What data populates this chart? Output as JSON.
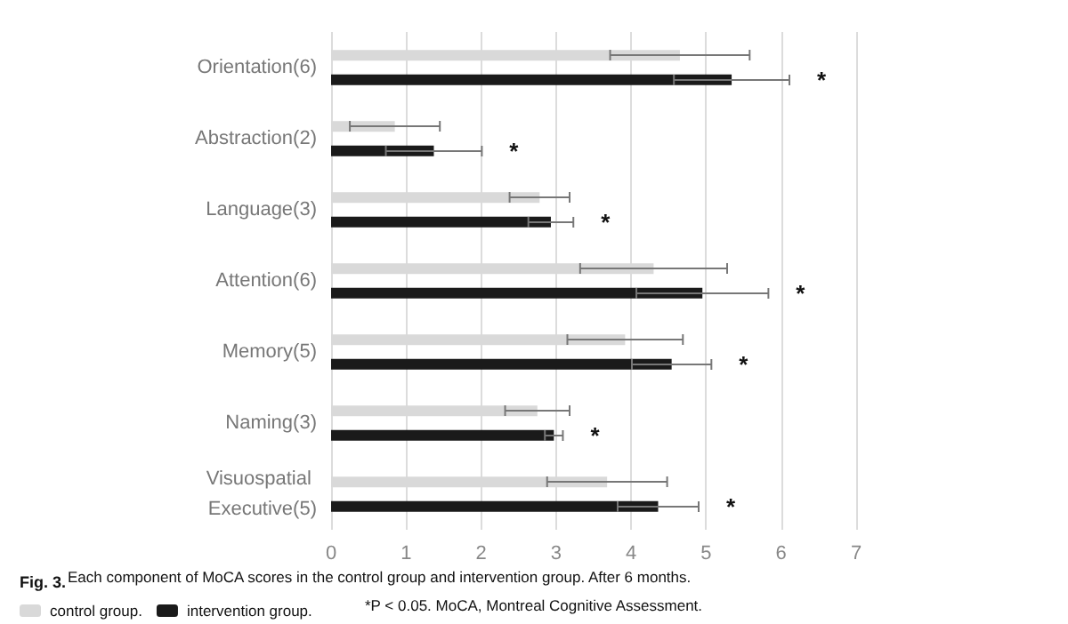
{
  "chart_data": {
    "type": "bar",
    "orientation": "horizontal",
    "title": "Fig. 3.",
    "categories": [
      "Orientation(6)",
      "Abstraction(2)",
      "Language(3)",
      "Attention(6)",
      "Memory(5)",
      "Naming(3)",
      "Visuospatial Executive(5)"
    ],
    "series": [
      {
        "name": "control group.",
        "color": "#d9d9d9",
        "values": [
          4.65,
          0.85,
          2.78,
          4.3,
          3.92,
          2.75,
          3.68
        ],
        "errors": [
          0.93,
          0.6,
          0.4,
          0.98,
          0.77,
          0.43,
          0.8
        ]
      },
      {
        "name": "intervention group.",
        "color": "#1a1a1a",
        "values": [
          5.34,
          1.37,
          2.93,
          4.95,
          4.54,
          2.97,
          4.36
        ],
        "errors": [
          0.77,
          0.64,
          0.3,
          0.88,
          0.53,
          0.12,
          0.54
        ]
      }
    ],
    "xlim": [
      0,
      7
    ],
    "xticks": [
      0,
      1,
      2,
      3,
      4,
      5,
      6,
      7
    ],
    "grid": "x",
    "legend": "bottom",
    "annotations": [
      "Each component of MoCA scores in the control group and intervention group. After 6 months.",
      "*P < 0.05. MoCA, Montreal Cognitive Assessment.",
      "*",
      "*",
      "*",
      "*",
      "*",
      "*",
      "*"
    ]
  }
}
